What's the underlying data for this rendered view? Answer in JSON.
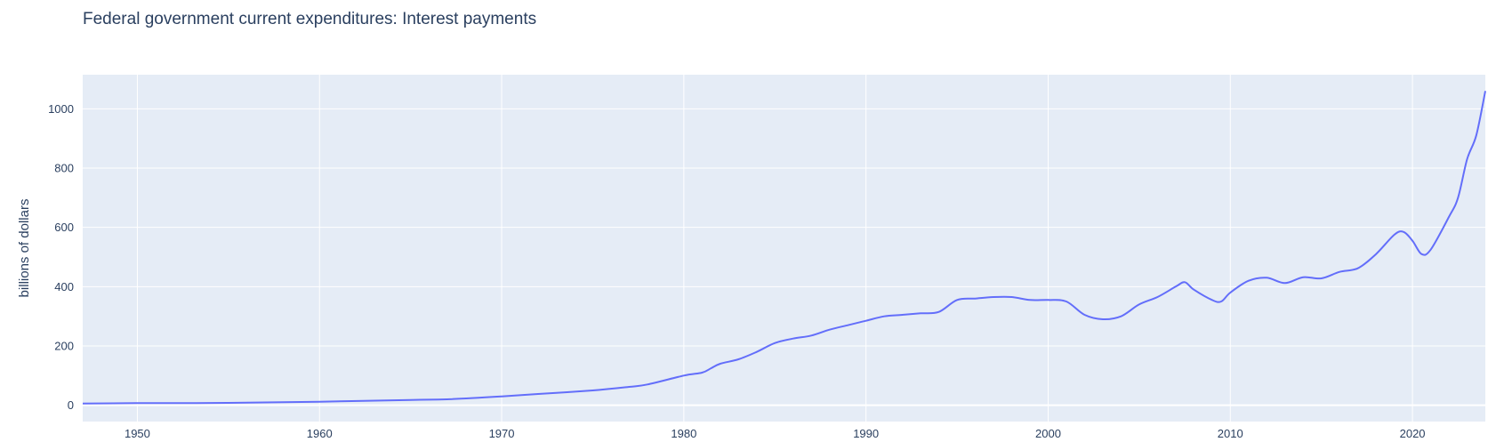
{
  "chart_data": {
    "type": "line",
    "title": "Federal government current expenditures: Interest payments",
    "xlabel": "",
    "ylabel": "billions of dollars",
    "xlim": [
      1947.0,
      2024.0
    ],
    "ylim": [
      -55,
      1115
    ],
    "x_ticks": [
      1950,
      1960,
      1970,
      1980,
      1990,
      2000,
      2010,
      2020
    ],
    "y_ticks": [
      0,
      200,
      400,
      600,
      800,
      1000
    ],
    "grid": true,
    "legend": "none",
    "colors": {
      "line": "#636efa",
      "plot_bg": "#e5ecf6",
      "grid": "#ffffff",
      "text": "#2a3f5f"
    },
    "series": [
      {
        "x": [
          1947,
          1950,
          1955,
          1960,
          1965,
          1967,
          1970,
          1972,
          1975,
          1977,
          1978,
          1980,
          1981,
          1981.5,
          1982,
          1983,
          1984,
          1985,
          1986,
          1987,
          1988,
          1989,
          1990,
          1991,
          1992,
          1993,
          1994,
          1995,
          1996,
          1997,
          1998,
          1999,
          2000,
          2001,
          2002,
          2003,
          2004,
          2005,
          2006,
          2007,
          2007.5,
          2008,
          2009,
          2009.5,
          2010,
          2011,
          2012,
          2013,
          2014,
          2015,
          2016,
          2017,
          2018,
          2019,
          2019.5,
          2020,
          2020.5,
          2021,
          2022,
          2022.5,
          2023,
          2023.5,
          2024
        ],
        "y": [
          6,
          7,
          8,
          12,
          18,
          20,
          30,
          38,
          50,
          62,
          70,
          100,
          110,
          125,
          140,
          155,
          180,
          210,
          225,
          235,
          255,
          270,
          285,
          300,
          305,
          310,
          315,
          355,
          360,
          365,
          365,
          355,
          355,
          350,
          305,
          290,
          300,
          340,
          365,
          400,
          415,
          390,
          355,
          350,
          380,
          420,
          430,
          412,
          432,
          428,
          450,
          462,
          510,
          575,
          585,
          555,
          510,
          525,
          635,
          700,
          830,
          910,
          1060
        ]
      }
    ]
  }
}
